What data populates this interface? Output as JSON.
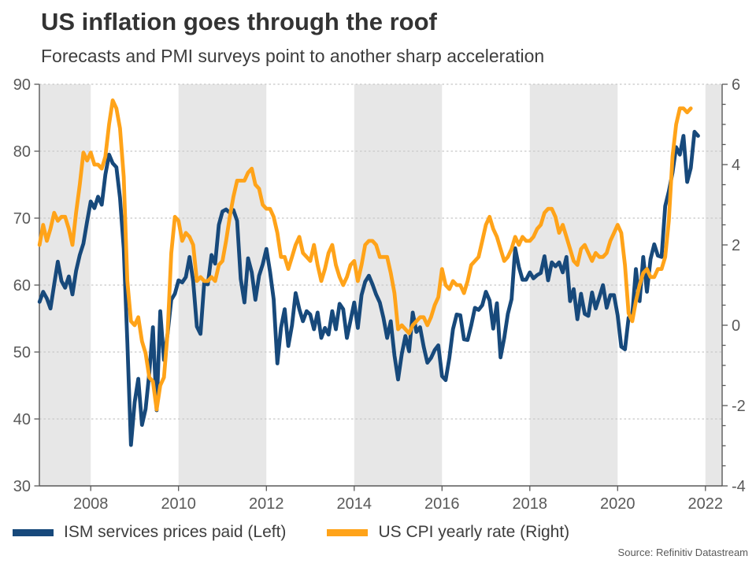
{
  "header": {
    "title": "US inflation goes through the roof",
    "subtitle": "Forecasts and PMI surveys point to another sharp acceleration"
  },
  "source": "Source: Refinitiv Datastream",
  "chart_data": {
    "type": "line",
    "title": "US inflation goes through the roof",
    "subtitle": "Forecasts and PMI surveys point to another sharp acceleration",
    "x_start_year": 2006,
    "x_start_month_index": 10,
    "x_frequency": "monthly",
    "grid": "horizontal-dashed",
    "legend_position": "bottom",
    "band_color": "#e7e7e7",
    "grid_color": "#c8c8c8",
    "axis_color": "#595959",
    "label_color": "#595959",
    "axes": {
      "x": {
        "min": 2006.83,
        "max": 2022.38,
        "ticks": [
          2008,
          2010,
          2012,
          2014,
          2016,
          2018,
          2020,
          2022
        ]
      },
      "y_left": {
        "min": 30,
        "max": 90,
        "ticks": [
          30,
          40,
          50,
          60,
          70,
          80,
          90
        ]
      },
      "y_right": {
        "min": -4,
        "max": 6,
        "ticks": [
          -4,
          -2,
          0,
          2,
          4,
          6
        ],
        "minor_step": 0.5
      }
    },
    "bands": [
      [
        2006.83,
        2008
      ],
      [
        2010,
        2012
      ],
      [
        2014,
        2016
      ],
      [
        2018,
        2020
      ],
      [
        2022,
        2022.38
      ]
    ],
    "series": [
      {
        "name": "ISM services prices paid (Left)",
        "axis": "left",
        "color": "#17497b",
        "values": [
          57.5,
          59.0,
          58.0,
          56.5,
          60.1,
          63.5,
          60.6,
          59.6,
          61.3,
          58.6,
          62.1,
          64.5,
          66.2,
          69.5,
          72.5,
          71.5,
          73.2,
          72.0,
          76.5,
          79.5,
          78.2,
          77.6,
          73.0,
          65.5,
          51.5,
          36.1,
          42.5,
          46.0,
          39.1,
          41.5,
          46.9,
          53.7,
          41.3,
          56.1,
          48.8,
          52.7,
          57.8,
          58.7,
          60.7,
          60.4,
          61.2,
          64.2,
          60.6,
          53.8,
          52.7,
          60.3,
          60.1,
          64.5,
          63.2,
          69.0,
          71.0,
          71.3,
          70.8,
          71.2,
          69.6,
          60.9,
          57.4,
          64.0,
          61.9,
          57.8,
          61.4,
          63.1,
          65.4,
          62.0,
          57.9,
          48.3,
          53.6,
          56.4,
          50.9,
          54.0,
          58.8,
          56.4,
          54.6,
          56.1,
          55.6,
          53.4,
          55.9,
          52.1,
          53.6,
          52.6,
          56.1,
          53.4,
          57.2,
          56.4,
          52.1,
          54.7,
          57.4,
          53.6,
          58.5,
          60.5,
          61.4,
          60.1,
          58.6,
          57.4,
          55.1,
          52.1,
          54.6,
          49.5,
          45.9,
          49.7,
          52.4,
          50.1,
          55.9,
          53.0,
          53.7,
          50.8,
          48.4,
          49.1,
          50.3,
          51.0,
          46.4,
          45.8,
          49.1,
          53.4,
          55.6,
          55.5,
          51.9,
          51.8,
          54.0,
          56.6,
          56.3,
          57.0,
          59.0,
          57.7,
          53.5,
          57.3,
          49.2,
          52.1,
          55.7,
          57.9,
          65.5,
          62.7,
          60.8,
          60.8,
          61.9,
          61.0,
          61.5,
          61.8,
          64.3,
          60.7,
          63.4,
          62.8,
          63.4,
          61.9,
          64.2,
          57.6,
          59.4,
          54.9,
          58.7,
          55.7,
          55.4,
          58.9,
          56.5,
          58.2,
          60.0,
          56.6,
          58.5,
          58.5,
          55.5,
          50.8,
          50.4,
          55.1,
          55.6,
          62.4,
          57.6,
          64.2,
          59.0,
          63.9,
          66.1,
          64.4,
          64.2,
          71.8,
          74.0,
          76.8,
          80.6,
          79.5,
          82.3,
          75.4,
          77.5,
          82.9,
          82.3
        ]
      },
      {
        "name": "US CPI yearly rate (Right)",
        "axis": "right",
        "color": "#ffa319",
        "values": [
          2.0,
          2.5,
          2.1,
          2.4,
          2.8,
          2.6,
          2.7,
          2.7,
          2.4,
          2.0,
          2.8,
          3.5,
          4.3,
          4.1,
          4.3,
          4.0,
          4.0,
          3.9,
          4.2,
          5.0,
          5.6,
          5.4,
          4.9,
          3.7,
          1.1,
          0.1,
          0.0,
          0.2,
          -0.4,
          -0.7,
          -1.3,
          -1.4,
          -2.1,
          -1.5,
          -1.3,
          -0.2,
          1.8,
          2.7,
          2.6,
          2.1,
          2.3,
          2.2,
          2.0,
          1.1,
          1.2,
          1.1,
          1.1,
          1.2,
          1.1,
          1.5,
          1.6,
          2.1,
          2.7,
          3.2,
          3.6,
          3.6,
          3.6,
          3.8,
          3.9,
          3.5,
          3.4,
          3.0,
          2.9,
          2.9,
          2.7,
          2.3,
          1.7,
          1.7,
          1.4,
          1.7,
          2.0,
          2.2,
          1.8,
          1.7,
          1.6,
          2.0,
          1.5,
          1.1,
          1.4,
          1.8,
          2.0,
          1.5,
          1.2,
          1.0,
          1.2,
          1.5,
          1.6,
          1.1,
          1.5,
          2.0,
          2.1,
          2.1,
          2.0,
          1.7,
          1.7,
          1.7,
          1.3,
          0.8,
          -0.1,
          0.0,
          -0.1,
          -0.2,
          0.0,
          0.1,
          0.2,
          0.2,
          0.0,
          0.2,
          0.5,
          0.7,
          1.4,
          1.0,
          0.9,
          1.1,
          1.0,
          1.0,
          0.8,
          1.1,
          1.5,
          1.6,
          1.7,
          2.1,
          2.5,
          2.7,
          2.4,
          2.2,
          1.9,
          1.6,
          1.7,
          1.9,
          2.2,
          2.0,
          2.2,
          2.1,
          2.1,
          2.2,
          2.4,
          2.5,
          2.8,
          2.9,
          2.9,
          2.7,
          2.3,
          2.5,
          2.2,
          1.9,
          1.6,
          1.5,
          1.9,
          2.0,
          1.8,
          1.6,
          1.8,
          1.7,
          1.7,
          1.8,
          2.1,
          2.3,
          2.5,
          2.3,
          1.5,
          0.3,
          0.1,
          0.6,
          1.0,
          1.3,
          1.4,
          1.2,
          1.2,
          1.4,
          1.4,
          1.7,
          2.6,
          4.2,
          5.0,
          5.4,
          5.4,
          5.3,
          5.4
        ]
      }
    ]
  }
}
